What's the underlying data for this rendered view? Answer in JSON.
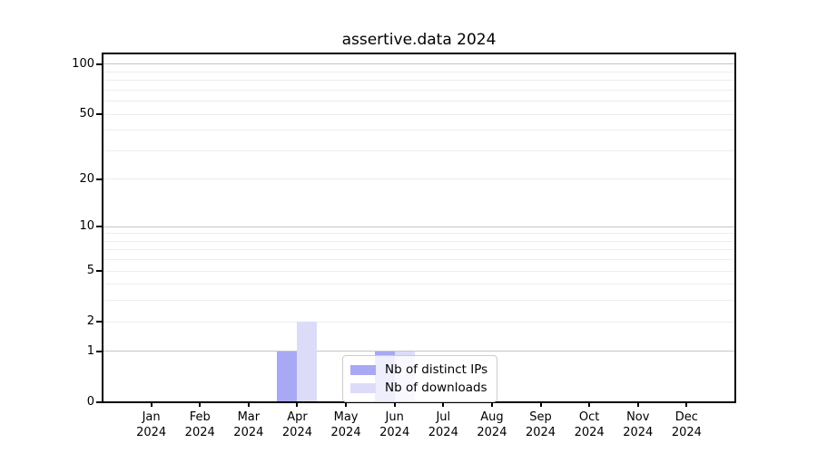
{
  "chart_data": {
    "type": "bar",
    "title": "assertive.data 2024",
    "year": "2024",
    "categories": [
      "Jan",
      "Feb",
      "Mar",
      "Apr",
      "May",
      "Jun",
      "Jul",
      "Aug",
      "Sep",
      "Oct",
      "Nov",
      "Dec"
    ],
    "series": [
      {
        "name": "Nb of distinct IPs",
        "color": "#a8a8f4",
        "values": [
          0,
          0,
          0,
          1,
          0,
          1,
          0,
          0,
          0,
          0,
          0,
          0
        ]
      },
      {
        "name": "Nb of downloads",
        "color": "#dcdcf9",
        "values": [
          0,
          0,
          0,
          2,
          0,
          1,
          0,
          0,
          0,
          0,
          0,
          0
        ]
      }
    ],
    "y_scale": "log1p",
    "ylim": [
      0,
      116
    ],
    "y_ticks": [
      100,
      50,
      20,
      10,
      5,
      2,
      1,
      0
    ],
    "y_tick_labels": [
      "100",
      "50",
      "20",
      "10",
      "5",
      "2",
      "1",
      "0"
    ],
    "y_major_gridlines": [
      1,
      10,
      100
    ],
    "y_minor_gridlines": [
      2,
      3,
      4,
      5,
      6,
      7,
      8,
      9,
      20,
      30,
      40,
      50,
      60,
      70,
      80,
      90
    ],
    "grid": "on",
    "legend_position": "lower-center-inside",
    "colors": {
      "major_grid": "#c6c6c6",
      "minor_grid": "#ededed",
      "spine": "#000000",
      "legend_border": "#cccccc"
    }
  }
}
